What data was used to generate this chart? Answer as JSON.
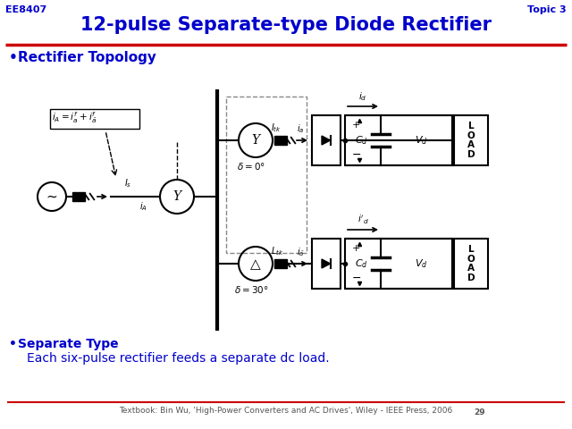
{
  "title": "12-pulse Separate-type Diode Rectifier",
  "title_color": "#0000CC",
  "header_left": "EE8407",
  "header_right": "Topic 3",
  "header_color": "#0000CC",
  "bullet1": "Rectifier Topology",
  "bullet2": "Separate Type",
  "bullet2_sub": "Each six-pulse rectifier feeds a separate dc load.",
  "bullet_color": "#0000CC",
  "footer": "Textbook: Bin Wu, 'High-Power Converters and AC Drives', Wiley - IEEE Press, 2006",
  "bg_color": "#FFFFFF",
  "red_color": "#CC0000",
  "diagram_color": "#000000",
  "gray_color": "#888888"
}
